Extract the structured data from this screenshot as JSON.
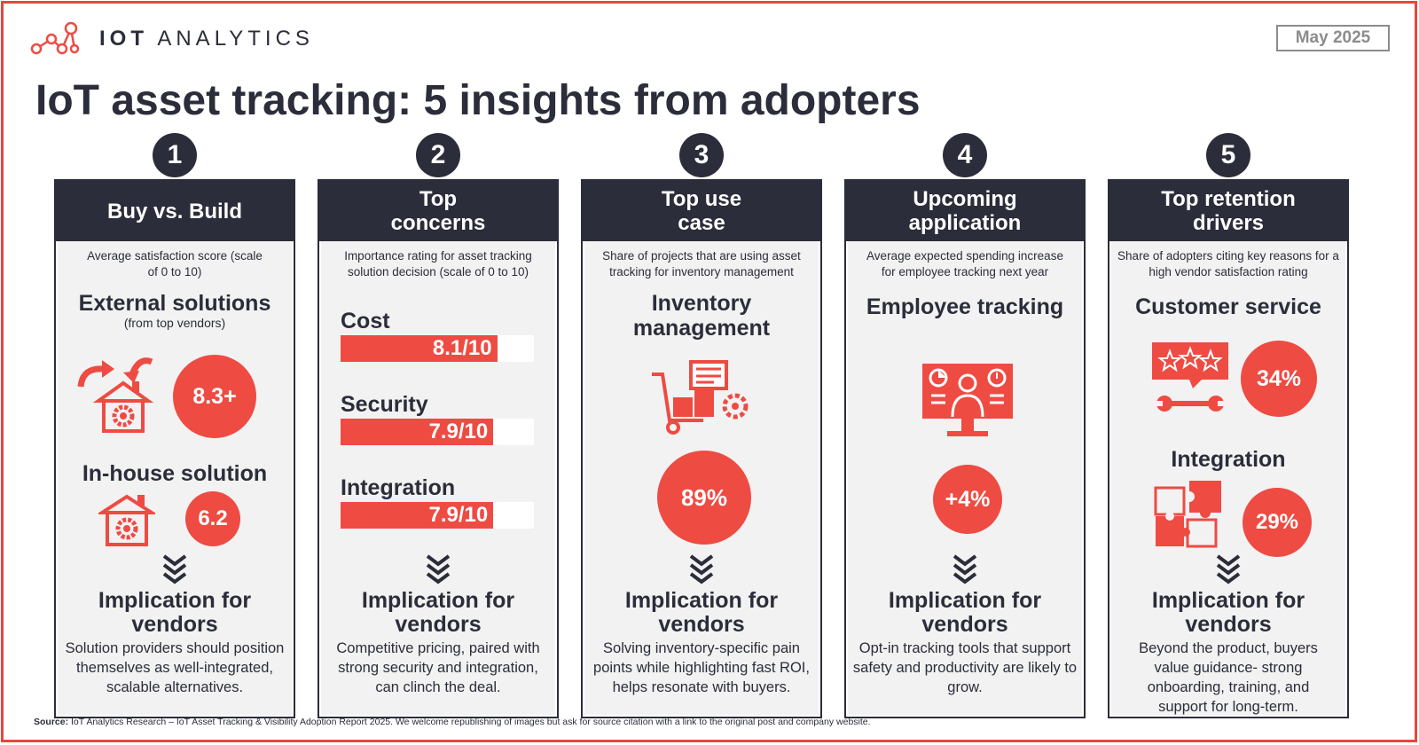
{
  "brand": {
    "name_bold": "IOT",
    "name_light": "ANALYTICS",
    "date": "May 2025"
  },
  "title": "IoT asset tracking: 5 insights from adopters",
  "colors": {
    "accent": "#ee4b43",
    "dark": "#2b2d3a",
    "card": "#f2f2f2",
    "frame": "#e8463f"
  },
  "columns": [
    {
      "number": "1",
      "header": "Buy vs. Build",
      "subtitle": "Average satisfaction score (scale of 0 to 10)",
      "external": {
        "label": "External solutions",
        "note": "(from top vendors)",
        "value": "8.3+",
        "icon": "house-gear-arrow-icon"
      },
      "inhouse": {
        "label": "In-house solution",
        "value": "6.2",
        "icon": "house-gear-icon"
      },
      "impl_title": "Implication for vendors",
      "impl_text": "Solution providers should position themselves as well-integrated, scalable alternatives."
    },
    {
      "number": "2",
      "header": "Top concerns",
      "subtitle": "Importance rating for asset tracking solution decision (scale of 0 to 10)",
      "bars": [
        {
          "label": "Cost",
          "value_text": "8.1/10",
          "value": 8.1,
          "max": 10
        },
        {
          "label": "Security",
          "value_text": "7.9/10",
          "value": 7.9,
          "max": 10
        },
        {
          "label": "Integration",
          "value_text": "7.9/10",
          "value": 7.9,
          "max": 10
        }
      ],
      "impl_title": "Implication for vendors",
      "impl_text": "Competitive pricing, paired with strong security and integration, can clinch the deal."
    },
    {
      "number": "3",
      "header": "Top use case",
      "subtitle": "Share of projects that are using asset tracking for inventory management",
      "label": "Inventory management",
      "icon": "inventory-cart-icon",
      "value": "89%",
      "impl_title": "Implication for vendors",
      "impl_text": "Solving inventory-specific pain points while highlighting fast ROI, helps resonate with buyers."
    },
    {
      "number": "4",
      "header": "Upcoming application",
      "subtitle": "Average expected spending increase for employee tracking next year",
      "label": "Employee tracking",
      "icon": "employee-monitor-icon",
      "value": "+4%",
      "impl_title": "Implication for vendors",
      "impl_text": "Opt-in tracking tools that support safety and productivity are likely to grow."
    },
    {
      "number": "5",
      "header": "Top retention drivers",
      "subtitle": "Share of adopters citing key reasons for a high vendor satisfaction rating",
      "service": {
        "label": "Customer service",
        "value": "34%",
        "icon": "rating-wrench-icon"
      },
      "integration": {
        "label": "Integration",
        "value": "29%",
        "icon": "puzzle-icon"
      },
      "impl_title": "Implication for vendors",
      "impl_text": "Beyond the product, buyers value guidance- strong onboarding, training, and support for long-term."
    }
  ],
  "source": {
    "label": "Source:",
    "text": "IoT Analytics Research – IoT Asset Tracking & Visibility Adoption Report 2025. We welcome republishing of images but ask for source citation with a link to the original post and company website."
  }
}
